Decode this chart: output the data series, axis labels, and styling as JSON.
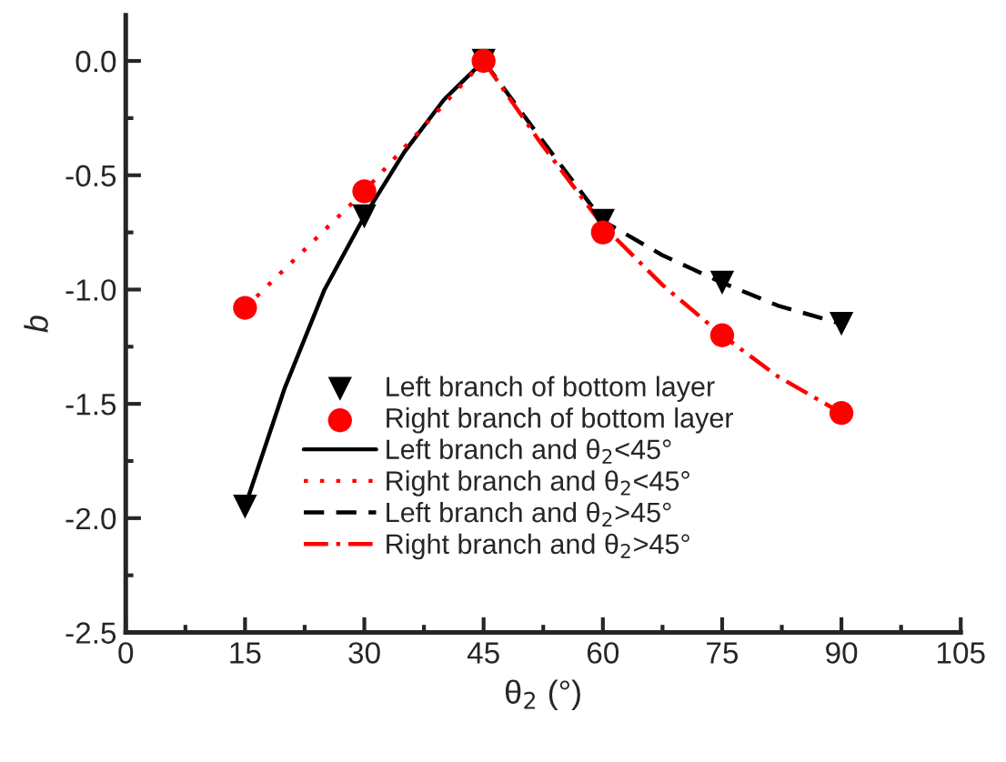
{
  "chart_data": {
    "type": "scatter",
    "xlabel": "θ$_{2}$ (°)",
    "ylabel": "b",
    "xlim": [
      0,
      105
    ],
    "xticks": [
      0,
      15,
      30,
      45,
      60,
      75,
      90,
      105
    ],
    "ylim": [
      -2.5,
      0.2
    ],
    "yticks": [
      {
        "value": 0,
        "label": "0.0"
      },
      {
        "value": -0.5,
        "label": "-0.5"
      },
      {
        "value": -1,
        "label": "-1.0"
      },
      {
        "value": -1.5,
        "label": "-1.5"
      },
      {
        "value": -2,
        "label": "-2.0"
      },
      {
        "value": -2.5,
        "label": "-2.5"
      }
    ],
    "grid": false,
    "legend": "bottom",
    "series": [
      {
        "name": "Left branch of bottom layer",
        "marker": "triangle",
        "color": "#000000",
        "x": [
          15,
          30,
          45,
          60,
          75,
          90
        ],
        "values": [
          -1.95,
          -0.68,
          0,
          -0.7,
          -0.97,
          -1.15
        ]
      },
      {
        "name": "Right branch of bottom layer",
        "marker": "circle",
        "color": "#ff0000",
        "x": [
          15,
          30,
          45,
          60,
          75,
          90
        ],
        "values": [
          -1.08,
          -0.57,
          0,
          -0.75,
          -1.2,
          -1.54
        ]
      },
      {
        "name": "Left branch and θ$_{2}$<45°",
        "type": "line",
        "line_style": "solid",
        "color": "#000000",
        "x": [
          15,
          20,
          25,
          30,
          35,
          40,
          45
        ],
        "values": [
          -1.95,
          -1.43,
          -1.0,
          -0.68,
          -0.4,
          -0.17,
          0
        ]
      },
      {
        "name": "Right branch and θ$_{2}$<45°",
        "type": "line",
        "line_style": "dotted",
        "color": "#ff0000",
        "x": [
          15,
          30,
          45
        ],
        "values": [
          -1.08,
          -0.57,
          0
        ]
      },
      {
        "name": "Left branch and θ$_{2}$>45°",
        "type": "line",
        "line_style": "dashed",
        "color": "#000000",
        "x": [
          45,
          52,
          60,
          67.5,
          75,
          82,
          90
        ],
        "values": [
          0,
          -0.33,
          -0.7,
          -0.85,
          -0.97,
          -1.07,
          -1.15
        ]
      },
      {
        "name": "Right branch and θ$_{2}$>45°",
        "type": "line",
        "line_style": "dashdot",
        "color": "#ff0000",
        "x": [
          45,
          52,
          60,
          67.5,
          75,
          82,
          90
        ],
        "values": [
          0,
          -0.35,
          -0.72,
          -0.98,
          -1.2,
          -1.38,
          -1.54
        ]
      }
    ]
  }
}
